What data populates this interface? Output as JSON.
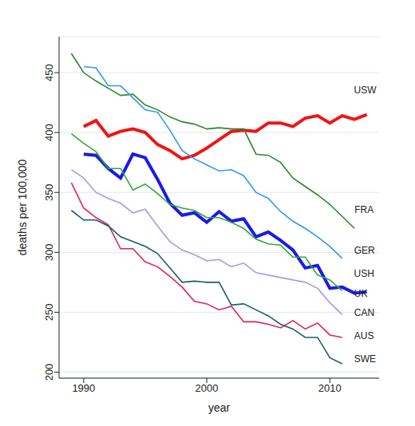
{
  "chart_data": {
    "type": "line",
    "x_label": "year",
    "y_label": "deaths per 100,000",
    "x": [
      1989,
      1990,
      1991,
      1992,
      1993,
      1994,
      1995,
      1996,
      1997,
      1998,
      1999,
      2000,
      2001,
      2002,
      2003,
      2004,
      2005,
      2006,
      2007,
      2008,
      2009,
      2010,
      2011,
      2012,
      2013
    ],
    "xlim": [
      1988,
      2014
    ],
    "xticks": [
      1990,
      2000,
      2010
    ],
    "ylim": [
      195,
      480
    ],
    "yticks": [
      200,
      250,
      300,
      350,
      400,
      450
    ],
    "grid": true,
    "series": [
      {
        "name": "USW",
        "color": "#f01414",
        "values": [
          null,
          405,
          410,
          397,
          401,
          403,
          400,
          390,
          385,
          378,
          381,
          387,
          394,
          401,
          402,
          401,
          408,
          408,
          405,
          412,
          414,
          408,
          414,
          411,
          415
        ]
      },
      {
        "name": "FRA",
        "color": "#2a8a2a",
        "values": [
          466,
          450,
          443,
          437,
          431,
          432,
          423,
          419,
          413,
          409,
          407,
          403,
          404,
          403,
          403,
          382,
          381,
          375,
          362,
          355,
          348,
          340,
          330,
          320,
          null
        ]
      },
      {
        "name": "GER",
        "color": "#3399ee",
        "values": [
          null,
          455,
          454,
          439,
          439,
          429,
          419,
          417,
          402,
          385,
          378,
          373,
          368,
          369,
          364,
          350,
          345,
          334,
          326,
          320,
          313,
          305,
          295,
          null,
          null
        ]
      },
      {
        "name": "USH",
        "color": "#1a1aee",
        "values": [
          null,
          382,
          381,
          370,
          362,
          382,
          379,
          361,
          341,
          331,
          333,
          325,
          334,
          326,
          328,
          313,
          317,
          310,
          302,
          287,
          289,
          270,
          271,
          266,
          267
        ]
      },
      {
        "name": "UK",
        "color": "#33aa33",
        "values": [
          399,
          391,
          384,
          370,
          370,
          352,
          357,
          349,
          340,
          337,
          335,
          329,
          329,
          325,
          320,
          311,
          307,
          306,
          296,
          296,
          281,
          277,
          268,
          null,
          null
        ]
      },
      {
        "name": "CAN",
        "color": "#a99be0",
        "values": [
          369,
          362,
          350,
          345,
          341,
          333,
          336,
          322,
          309,
          302,
          298,
          293,
          294,
          288,
          291,
          283,
          281,
          279,
          277,
          275,
          270,
          258,
          248,
          null,
          null
        ]
      },
      {
        "name": "AUS",
        "color": "#e0245a",
        "values": [
          358,
          337,
          329,
          323,
          303,
          303,
          292,
          288,
          280,
          271,
          259,
          257,
          252,
          255,
          242,
          242,
          240,
          237,
          243,
          236,
          241,
          231,
          229,
          null,
          null
        ]
      },
      {
        "name": "SWE",
        "color": "#1a5e6e",
        "values": [
          335,
          327,
          327,
          322,
          313,
          309,
          305,
          299,
          287,
          275,
          276,
          275,
          275,
          256,
          257,
          252,
          247,
          240,
          236,
          229,
          229,
          212,
          207,
          null,
          null
        ]
      }
    ]
  }
}
